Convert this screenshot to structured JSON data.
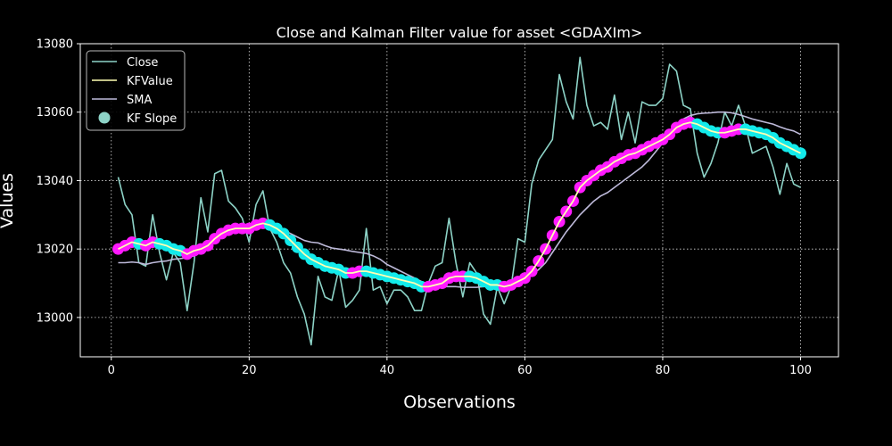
{
  "chart_data": {
    "type": "line",
    "title": "Close and Kalman Filter value for asset <GDAXIm>",
    "xlabel": "Observations",
    "ylabel": "Values",
    "xlim": [
      -4.5,
      105.5
    ],
    "ylim": [
      12988.5,
      13080
    ],
    "xticks": [
      0,
      20,
      40,
      60,
      80,
      100
    ],
    "yticks": [
      13000,
      13020,
      13040,
      13060,
      13080
    ],
    "grid": true,
    "legend_position": "top-left",
    "background": "#000000",
    "series": [
      {
        "name": "Close",
        "kind": "line",
        "color": "#8dd3c7",
        "x": [
          1,
          2,
          3,
          4,
          5,
          6,
          7,
          8,
          9,
          10,
          11,
          12,
          13,
          14,
          15,
          16,
          17,
          18,
          19,
          20,
          21,
          22,
          23,
          24,
          25,
          26,
          27,
          28,
          29,
          30,
          31,
          32,
          33,
          34,
          35,
          36,
          37,
          38,
          39,
          40,
          41,
          42,
          43,
          44,
          45,
          46,
          47,
          48,
          49,
          50,
          51,
          52,
          53,
          54,
          55,
          56,
          57,
          58,
          59,
          60,
          61,
          62,
          63,
          64,
          65,
          66,
          67,
          68,
          69,
          70,
          71,
          72,
          73,
          74,
          75,
          76,
          77,
          78,
          79,
          80,
          81,
          82,
          83,
          84,
          85,
          86,
          87,
          88,
          89,
          90,
          91,
          92,
          93,
          94,
          95,
          96,
          97,
          98,
          99,
          100
        ],
        "values": [
          13041,
          13033,
          13030,
          13016,
          13015,
          13030,
          13019,
          13011,
          13019,
          13016,
          13002,
          13016,
          13035,
          13025,
          13042,
          13043,
          13034,
          13032,
          13029,
          13022,
          13033,
          13037,
          13026,
          13022,
          13016,
          13013,
          13006,
          13001,
          12992,
          13012,
          13006,
          13005,
          13014,
          13003,
          13005,
          13008,
          13026,
          13008,
          13009,
          13004,
          13008,
          13008,
          13006,
          13002,
          13002,
          13010,
          13015,
          13016,
          13029,
          13016,
          13006,
          13016,
          13013,
          13001,
          12998,
          13009,
          13004,
          13009,
          13023,
          13022,
          13039,
          13046,
          13049,
          13052,
          13071,
          13063,
          13058,
          13076,
          13062,
          13056,
          13057,
          13055,
          13065,
          13052,
          13060,
          13051,
          13063,
          13062,
          13062,
          13064,
          13074,
          13072,
          13062,
          13061,
          13048,
          13041,
          13045,
          13051,
          13060,
          13056,
          13062,
          13056,
          13048,
          13049,
          13050,
          13044,
          13036,
          13045,
          13039,
          13038
        ]
      },
      {
        "name": "KFValue",
        "kind": "line",
        "color": "#ffffb3",
        "x": [
          1,
          2,
          3,
          4,
          5,
          6,
          7,
          8,
          9,
          10,
          11,
          12,
          13,
          14,
          15,
          16,
          17,
          18,
          19,
          20,
          21,
          22,
          23,
          24,
          25,
          26,
          27,
          28,
          29,
          30,
          31,
          32,
          33,
          34,
          35,
          36,
          37,
          38,
          39,
          40,
          41,
          42,
          43,
          44,
          45,
          46,
          47,
          48,
          49,
          50,
          51,
          52,
          53,
          54,
          55,
          56,
          57,
          58,
          59,
          60,
          61,
          62,
          63,
          64,
          65,
          66,
          67,
          68,
          69,
          70,
          71,
          72,
          73,
          74,
          75,
          76,
          77,
          78,
          79,
          80,
          81,
          82,
          83,
          84,
          85,
          86,
          87,
          88,
          89,
          90,
          91,
          92,
          93,
          94,
          95,
          96,
          97,
          98,
          99,
          100
        ],
        "values": [
          13020,
          13021,
          13022,
          13021.5,
          13021,
          13022,
          13021.5,
          13021,
          13020,
          13019.5,
          13018.5,
          13019.5,
          13020,
          13021,
          13023,
          13024.5,
          13025.5,
          13026,
          13026,
          13026,
          13027,
          13027.5,
          13027,
          13026,
          13024.5,
          13022.5,
          13020.5,
          13018.5,
          13017,
          13016,
          13015,
          13014.5,
          13014,
          13013,
          13013,
          13013.5,
          13013.5,
          13013,
          13012.5,
          13012,
          13011.5,
          13011,
          13010.5,
          13010,
          13009,
          13009,
          13009.5,
          13010,
          13011.5,
          13012,
          13012,
          13012,
          13011.5,
          13010.5,
          13009.5,
          13009.5,
          13009,
          13009.5,
          13010.5,
          13011.5,
          13013.5,
          13016.5,
          13020,
          13024,
          13028,
          13031,
          13034,
          13038,
          13040,
          13041.5,
          13043,
          13044,
          13045.5,
          13046.5,
          13047.5,
          13048,
          13049,
          13050,
          13051,
          13052,
          13053.5,
          13055.5,
          13056.5,
          13057,
          13056.5,
          13055.5,
          13054.5,
          13054,
          13054,
          13054.5,
          13055,
          13055,
          13054.5,
          13054,
          13053.5,
          13052.5,
          13051,
          13050,
          13049,
          13048
        ]
      },
      {
        "name": "SMA",
        "kind": "line",
        "color": "#bebada",
        "x": [
          1,
          2,
          3,
          4,
          5,
          6,
          7,
          8,
          9,
          10,
          11,
          12,
          13,
          14,
          15,
          16,
          17,
          18,
          19,
          20,
          21,
          22,
          23,
          24,
          25,
          26,
          27,
          28,
          29,
          30,
          31,
          32,
          33,
          34,
          35,
          36,
          37,
          38,
          39,
          40,
          41,
          42,
          43,
          44,
          45,
          46,
          47,
          48,
          49,
          50,
          51,
          52,
          53,
          54,
          55,
          56,
          57,
          58,
          59,
          60,
          61,
          62,
          63,
          64,
          65,
          66,
          67,
          68,
          69,
          70,
          71,
          72,
          73,
          74,
          75,
          76,
          77,
          78,
          79,
          80,
          81,
          82,
          83,
          84,
          85,
          86,
          87,
          88,
          89,
          90,
          91,
          92,
          93,
          94,
          95,
          96,
          97,
          98,
          99,
          100
        ],
        "values": [
          13016,
          13016,
          13016.2,
          13016,
          13015.5,
          13016,
          13016.3,
          13016.5,
          13017,
          13017.2,
          13017.5,
          13018,
          13019,
          13020.5,
          13022,
          13023.5,
          13024.5,
          13025,
          13025.5,
          13026,
          13026,
          13026.3,
          13026.5,
          13026.2,
          13025.5,
          13024.5,
          13023.5,
          13022.5,
          13022,
          13021.8,
          13021,
          13020.3,
          13020,
          13019.7,
          13019.3,
          13019,
          13018.7,
          13018,
          13017,
          13015.5,
          13014.5,
          13013.5,
          13012.5,
          13011.5,
          13010.5,
          13009.5,
          13009.2,
          13009,
          13009,
          13009,
          13008.8,
          13008.8,
          13008.8,
          13009,
          13009,
          13009,
          13009.5,
          13009.7,
          13010.5,
          13011.5,
          13012.5,
          13014,
          13016,
          13019,
          13022,
          13025,
          13027.5,
          13030,
          13032,
          13034,
          13035.5,
          13036.5,
          13038,
          13039.5,
          13041,
          13042.5,
          13044,
          13046,
          13048.5,
          13051,
          13053.5,
          13056,
          13058,
          13059,
          13059.5,
          13059.7,
          13059.8,
          13060,
          13060,
          13059.8,
          13059.3,
          13058.7,
          13058,
          13057.5,
          13057,
          13056.5,
          13055.7,
          13055,
          13054.5,
          13053.5
        ]
      },
      {
        "name": "KF Slope",
        "kind": "scatter",
        "color": "#8dd3c7",
        "rise_color": "#ff1aff",
        "fall_color": "#13eaea",
        "x": [
          1,
          2,
          3,
          4,
          5,
          6,
          7,
          8,
          9,
          10,
          11,
          12,
          13,
          14,
          15,
          16,
          17,
          18,
          19,
          20,
          21,
          22,
          23,
          24,
          25,
          26,
          27,
          28,
          29,
          30,
          31,
          32,
          33,
          34,
          35,
          36,
          37,
          38,
          39,
          40,
          41,
          42,
          43,
          44,
          45,
          46,
          47,
          48,
          49,
          50,
          51,
          52,
          53,
          54,
          55,
          56,
          57,
          58,
          59,
          60,
          61,
          62,
          63,
          64,
          65,
          66,
          67,
          68,
          69,
          70,
          71,
          72,
          73,
          74,
          75,
          76,
          77,
          78,
          79,
          80,
          81,
          82,
          83,
          84,
          85,
          86,
          87,
          88,
          89,
          90,
          91,
          92,
          93,
          94,
          95,
          96,
          97,
          98,
          99,
          100
        ],
        "values": [
          13020,
          13021,
          13022,
          13021.5,
          13021,
          13022,
          13021.5,
          13021,
          13020,
          13019.5,
          13018.5,
          13019.5,
          13020,
          13021,
          13023,
          13024.5,
          13025.5,
          13026,
          13026,
          13026,
          13027,
          13027.5,
          13027,
          13026,
          13024.5,
          13022.5,
          13020.5,
          13018.5,
          13017,
          13016,
          13015,
          13014.5,
          13014,
          13013,
          13013,
          13013.5,
          13013.5,
          13013,
          13012.5,
          13012,
          13011.5,
          13011,
          13010.5,
          13010,
          13009,
          13009,
          13009.5,
          13010,
          13011.5,
          13012,
          13012,
          13012,
          13011.5,
          13010.5,
          13009.5,
          13009.5,
          13009,
          13009.5,
          13010.5,
          13011.5,
          13013.5,
          13016.5,
          13020,
          13024,
          13028,
          13031,
          13034,
          13038,
          13040,
          13041.5,
          13043,
          13044,
          13045.5,
          13046.5,
          13047.5,
          13048,
          13049,
          13050,
          13051,
          13052,
          13053.5,
          13055.5,
          13056.5,
          13057,
          13056.5,
          13055.5,
          13054.5,
          13054,
          13054,
          13054.5,
          13055,
          13055,
          13054.5,
          13054,
          13053.5,
          13052.5,
          13051,
          13050,
          13049,
          13048
        ]
      }
    ]
  }
}
